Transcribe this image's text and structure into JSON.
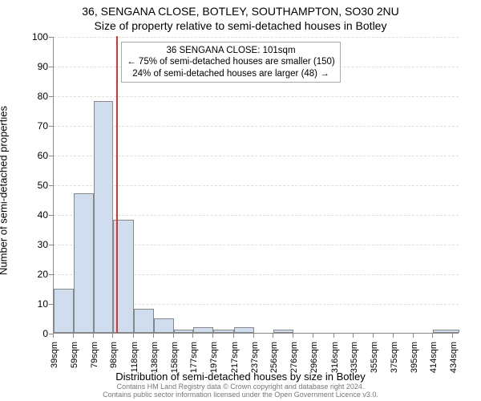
{
  "title_line1": "36, SENGANA CLOSE, BOTLEY, SOUTHAMPTON, SO30 2NU",
  "title_line2": "Size of property relative to semi-detached houses in Botley",
  "ylabel": "Number of semi-detached properties",
  "xlabel": "Distribution of semi-detached houses by size in Botley",
  "footer_line1": "Contains HM Land Registry data © Crown copyright and database right 2024.",
  "footer_line2": "Contains public sector information licensed under the Open Government Licence v3.0.",
  "annotation": {
    "line1": "36 SENGANA CLOSE: 101sqm",
    "line2": "← 75% of semi-detached houses are smaller (150)",
    "line3": "24% of semi-detached houses are larger (48) →"
  },
  "chart": {
    "type": "histogram",
    "ylim": [
      0,
      100
    ],
    "ytick_step": 10,
    "bar_fill": "#d0ddee",
    "bar_border": "#888888",
    "grid_color": "#dddddd",
    "refline_color": "#dd3333",
    "refline_x": 101,
    "background": "#ffffff",
    "xtick_labels": [
      "39sqm",
      "59sqm",
      "79sqm",
      "98sqm",
      "118sqm",
      "138sqm",
      "158sqm",
      "177sqm",
      "197sqm",
      "217sqm",
      "237sqm",
      "256sqm",
      "276sqm",
      "296sqm",
      "316sqm",
      "335sqm",
      "355sqm",
      "375sqm",
      "395sqm",
      "414sqm",
      "434sqm"
    ],
    "xtick_values": [
      39,
      59,
      79,
      98,
      118,
      138,
      158,
      177,
      197,
      217,
      237,
      256,
      276,
      296,
      316,
      335,
      355,
      375,
      395,
      414,
      434
    ],
    "x_range": [
      39,
      440
    ],
    "bars": [
      {
        "x0": 39,
        "x1": 59,
        "y": 15
      },
      {
        "x0": 59,
        "x1": 79,
        "y": 47
      },
      {
        "x0": 79,
        "x1": 98,
        "y": 78
      },
      {
        "x0": 98,
        "x1": 118,
        "y": 38
      },
      {
        "x0": 118,
        "x1": 138,
        "y": 8
      },
      {
        "x0": 138,
        "x1": 158,
        "y": 5
      },
      {
        "x0": 158,
        "x1": 177,
        "y": 1
      },
      {
        "x0": 177,
        "x1": 197,
        "y": 2
      },
      {
        "x0": 197,
        "x1": 217,
        "y": 1
      },
      {
        "x0": 217,
        "x1": 237,
        "y": 2
      },
      {
        "x0": 237,
        "x1": 256,
        "y": 0
      },
      {
        "x0": 256,
        "x1": 276,
        "y": 1
      },
      {
        "x0": 276,
        "x1": 296,
        "y": 0
      },
      {
        "x0": 296,
        "x1": 316,
        "y": 0
      },
      {
        "x0": 316,
        "x1": 335,
        "y": 0
      },
      {
        "x0": 335,
        "x1": 355,
        "y": 0
      },
      {
        "x0": 355,
        "x1": 375,
        "y": 0
      },
      {
        "x0": 375,
        "x1": 395,
        "y": 0
      },
      {
        "x0": 395,
        "x1": 414,
        "y": 0
      },
      {
        "x0": 414,
        "x1": 440,
        "y": 1
      }
    ]
  }
}
